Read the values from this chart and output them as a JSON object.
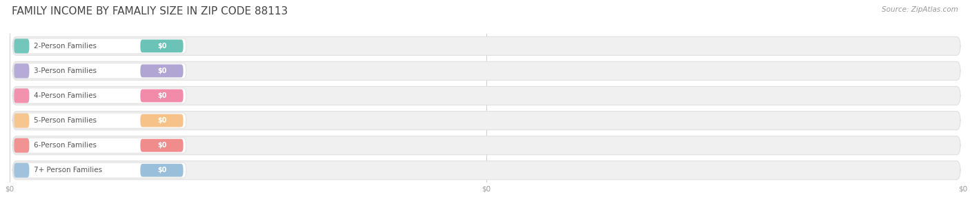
{
  "title": "FAMILY INCOME BY FAMALIY SIZE IN ZIP CODE 88113",
  "source": "Source: ZipAtlas.com",
  "categories": [
    "2-Person Families",
    "3-Person Families",
    "4-Person Families",
    "5-Person Families",
    "6-Person Families",
    "7+ Person Families"
  ],
  "values": [
    0,
    0,
    0,
    0,
    0,
    0
  ],
  "bar_colors": [
    "#5bbcb0",
    "#a99bcf",
    "#f07fa0",
    "#f5bc7d",
    "#f08080",
    "#8fb8d8"
  ],
  "title_fontsize": 11,
  "label_fontsize": 7.5,
  "value_fontsize": 7,
  "tick_fontsize": 7.5,
  "source_fontsize": 7.5,
  "background_color": "#ffffff",
  "title_color": "#444444",
  "label_color": "#555555",
  "value_label_color": "#ffffff",
  "tick_color": "#999999",
  "source_color": "#999999",
  "grid_color": "#cccccc",
  "bar_bg_color": "#f0f0f0",
  "bar_edge_color": "#e0e0e0",
  "label_bg_color": "#ffffff",
  "row_sep_color": "#e8e8e8"
}
